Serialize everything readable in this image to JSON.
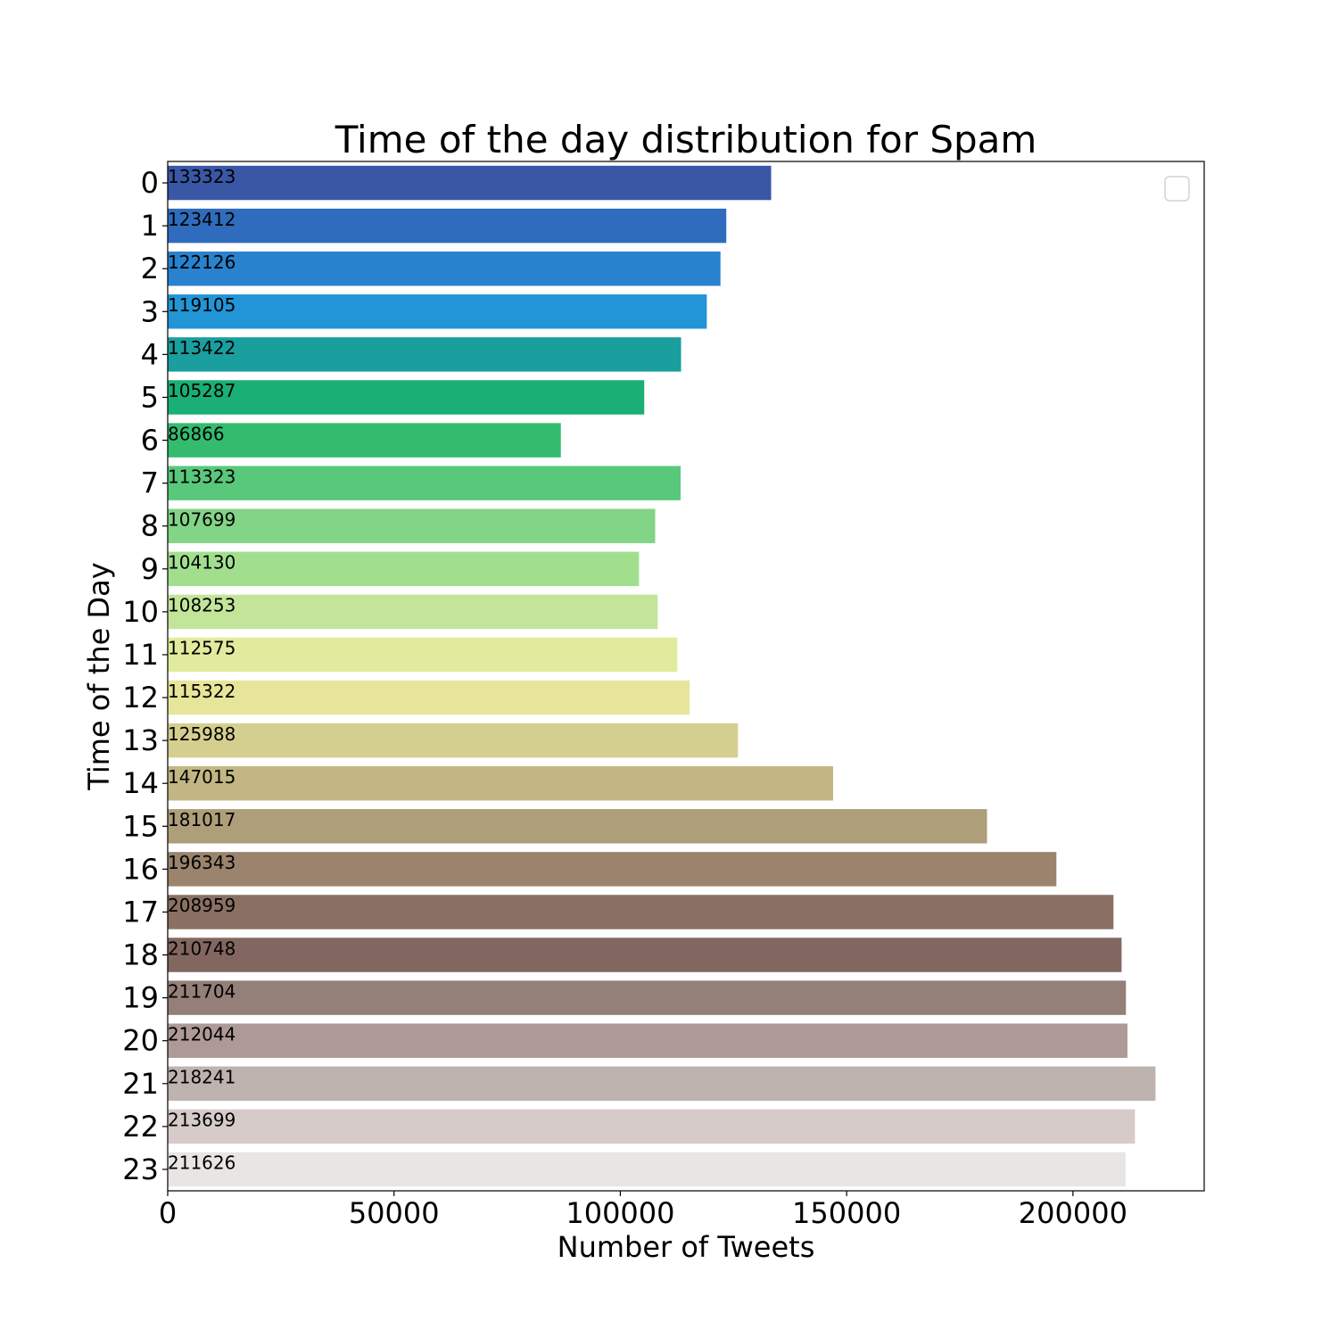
{
  "chart_data": {
    "type": "bar",
    "orientation": "horizontal",
    "title": "Time of the day distribution for Spam",
    "xlabel": "Number of Tweets",
    "ylabel": "Time of the Day",
    "xlim": [
      0,
      229000
    ],
    "xticks": [
      0,
      50000,
      100000,
      150000,
      200000
    ],
    "grid": false,
    "legend": "empty, top-right",
    "categories": [
      "0",
      "1",
      "2",
      "3",
      "4",
      "5",
      "6",
      "7",
      "8",
      "9",
      "10",
      "11",
      "12",
      "13",
      "14",
      "15",
      "16",
      "17",
      "18",
      "19",
      "20",
      "21",
      "22",
      "23"
    ],
    "values": [
      133323,
      123412,
      122126,
      119105,
      113422,
      105287,
      86866,
      113323,
      107699,
      104130,
      108253,
      112575,
      115322,
      125988,
      147015,
      181017,
      196343,
      208959,
      210748,
      211704,
      212044,
      218241,
      213699,
      211626
    ],
    "data_labels": [
      "133323",
      "123412",
      "122126",
      "119105",
      "113422",
      "105287",
      "86866",
      "113323",
      "107699",
      "104130",
      "108253",
      "112575",
      "115322",
      "125988",
      "147015",
      "181017",
      "196343",
      "208959",
      "210748",
      "211704",
      "212044",
      "218241",
      "213699",
      "211626"
    ],
    "colors": [
      "#3957a4",
      "#306cbd",
      "#2882cd",
      "#2195d6",
      "#1a9e9e",
      "#1aaf74",
      "#33bc6e",
      "#59c87b",
      "#82d487",
      "#a1df8f",
      "#c3e59a",
      "#e1eb9d",
      "#e7e59a",
      "#d5cf8f",
      "#c2b684",
      "#ae9e7a",
      "#9a846d",
      "#8a7062",
      "#826760",
      "#947f79",
      "#ad9a96",
      "#bfb3af",
      "#d6cbc9",
      "#e8e5e4"
    ]
  }
}
